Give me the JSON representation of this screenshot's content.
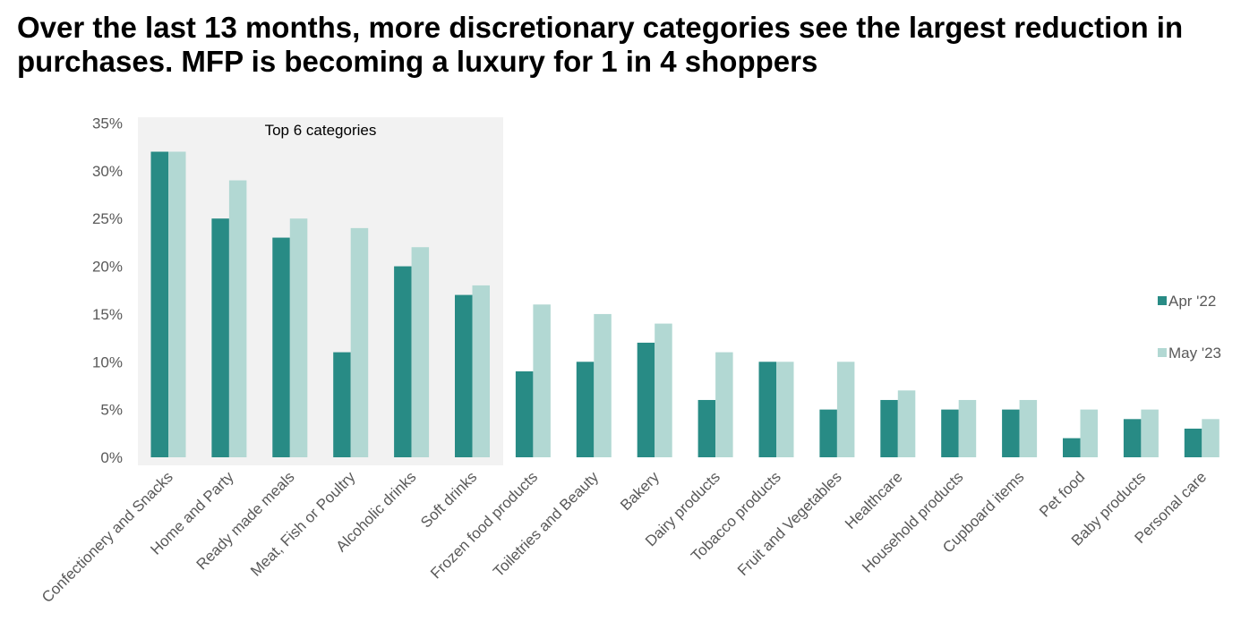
{
  "title": "Over the last 13 months, more discretionary categories see the largest reduction in purchases. MFP is becoming a luxury for 1 in 4 shoppers",
  "chart_data": {
    "type": "bar",
    "title": "Over the last 13 months, more discretionary categories see the largest reduction in purchases. MFP is becoming a luxury for 1 in 4 shoppers",
    "xlabel": "",
    "ylabel": "",
    "ylim": [
      0,
      35
    ],
    "yticks": [
      "0%",
      "5%",
      "10%",
      "15%",
      "20%",
      "25%",
      "30%",
      "35%"
    ],
    "ytick_values": [
      0,
      5,
      10,
      15,
      20,
      25,
      30,
      35
    ],
    "grid": false,
    "legend_position": "right",
    "highlight": {
      "label": "Top 6 categories",
      "count": 6,
      "color": "#F2F2F2"
    },
    "categories": [
      "Confectionery and Snacks",
      "Home and Party",
      "Ready made meals",
      "Meat, Fish or Poultry",
      "Alcoholic drinks",
      "Soft drinks",
      "Frozen food products",
      "Toiletries and Beauty",
      "Bakery",
      "Dairy products",
      "Tobacco products",
      "Fruit and Vegetables",
      "Healthcare",
      "Household products",
      "Cupboard items",
      "Pet food",
      "Baby products",
      "Personal care"
    ],
    "series": [
      {
        "name": "Apr '22",
        "color": "#288B85",
        "values": [
          32,
          25,
          23,
          11,
          20,
          17,
          9,
          10,
          12,
          6,
          10,
          5,
          6,
          5,
          5,
          2,
          4,
          3
        ]
      },
      {
        "name": "May '23",
        "color": "#B2D8D3",
        "values": [
          32,
          29,
          25,
          24,
          22,
          18,
          16,
          15,
          14,
          11,
          10,
          10,
          7,
          6,
          6,
          5,
          5,
          4
        ]
      }
    ]
  }
}
